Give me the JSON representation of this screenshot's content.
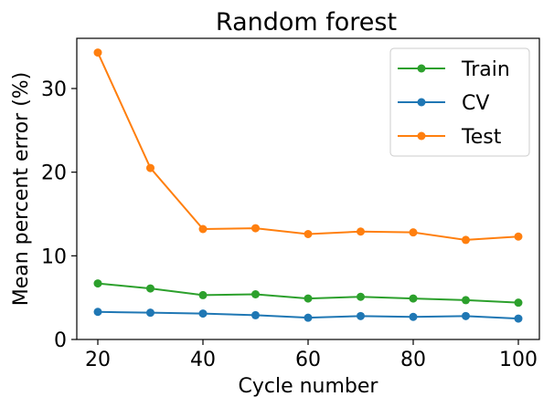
{
  "chart_data": {
    "type": "line",
    "title": "Random forest",
    "xlabel": "Cycle number",
    "ylabel": "Mean percent error (%)",
    "x": [
      20,
      30,
      40,
      50,
      60,
      70,
      80,
      90,
      100
    ],
    "xlim": [
      16,
      104
    ],
    "ylim": [
      0,
      36
    ],
    "xticks": [
      20,
      40,
      60,
      80,
      100
    ],
    "yticks": [
      0,
      10,
      20,
      30
    ],
    "grid": false,
    "legend_position": "top-right",
    "series": [
      {
        "name": "Train",
        "color": "#2ca02c",
        "values": [
          6.7,
          6.1,
          5.3,
          5.4,
          4.9,
          5.1,
          4.9,
          4.7,
          4.4
        ]
      },
      {
        "name": "CV",
        "color": "#1f77b4",
        "values": [
          3.3,
          3.2,
          3.1,
          2.9,
          2.6,
          2.8,
          2.7,
          2.8,
          2.5
        ]
      },
      {
        "name": "Test",
        "color": "#ff7f0e",
        "values": [
          34.3,
          20.5,
          13.2,
          13.3,
          12.6,
          12.9,
          12.8,
          11.9,
          12.3
        ]
      }
    ]
  }
}
